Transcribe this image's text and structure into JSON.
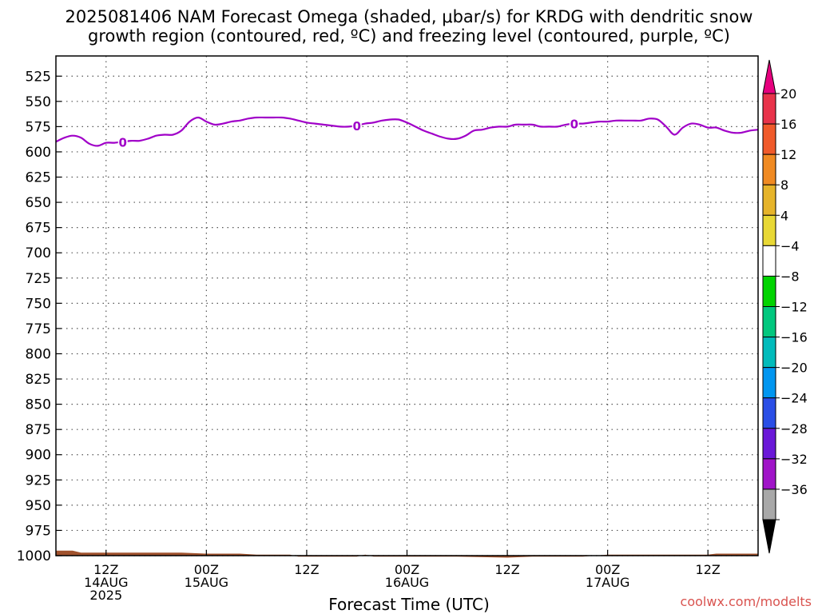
{
  "chart_data": {
    "type": "line",
    "title_line1": "2025081406 NAM Forecast Omega (shaded, μbar/s) for KRDG with dendritic snow",
    "title_line2": "growth region (contoured, red, ºC) and freezing level (contoured, purple, ºC)",
    "xlabel": "Forecast Time (UTC)",
    "y_ticks": [
      525,
      550,
      575,
      600,
      625,
      650,
      675,
      700,
      725,
      750,
      775,
      800,
      825,
      850,
      875,
      900,
      925,
      950,
      975,
      1000
    ],
    "ylim": [
      1000,
      505
    ],
    "xlim": [
      0,
      84
    ],
    "x_ticks": [
      {
        "x": 6,
        "line1": "12Z",
        "line2": "14AUG",
        "line3": "2025"
      },
      {
        "x": 18,
        "line1": "00Z",
        "line2": "15AUG",
        "line3": ""
      },
      {
        "x": 30,
        "line1": "12Z",
        "line2": "",
        "line3": ""
      },
      {
        "x": 42,
        "line1": "00Z",
        "line2": "16AUG",
        "line3": ""
      },
      {
        "x": 54,
        "line1": "12Z",
        "line2": "",
        "line3": ""
      },
      {
        "x": 66,
        "line1": "00Z",
        "line2": "17AUG",
        "line3": ""
      },
      {
        "x": 78,
        "line1": "12Z",
        "line2": "",
        "line3": ""
      }
    ],
    "grid": true,
    "freezing_level": {
      "contour_label": "0",
      "color": "#a000c8",
      "label_x": [
        8,
        36,
        62
      ],
      "x": [
        0,
        1,
        2,
        3,
        4,
        5,
        6,
        7,
        8,
        9,
        10,
        11,
        12,
        13,
        14,
        15,
        16,
        17,
        18,
        19,
        20,
        21,
        22,
        23,
        24,
        25,
        26,
        27,
        28,
        29,
        30,
        31,
        32,
        33,
        34,
        35,
        36,
        37,
        38,
        39,
        40,
        41,
        42,
        43,
        44,
        45,
        46,
        47,
        48,
        49,
        50,
        51,
        52,
        53,
        54,
        55,
        56,
        57,
        58,
        59,
        60,
        61,
        62,
        63,
        64,
        65,
        66,
        67,
        68,
        69,
        70,
        71,
        72,
        73,
        74,
        75,
        76,
        77,
        78,
        79,
        80,
        81,
        82,
        83,
        84
      ],
      "y": [
        590,
        586,
        584,
        586,
        592,
        594,
        591,
        591,
        590,
        589,
        589,
        587,
        584,
        583,
        583,
        579,
        570,
        566,
        570,
        573,
        572,
        570,
        569,
        567,
        566,
        566,
        566,
        566,
        567,
        569,
        571,
        572,
        573,
        574,
        575,
        575,
        574,
        572,
        571,
        569,
        568,
        568,
        571,
        575,
        579,
        582,
        585,
        587,
        587,
        584,
        579,
        578,
        576,
        575,
        575,
        573,
        573,
        573,
        575,
        575,
        575,
        573,
        572,
        572,
        571,
        570,
        570,
        569,
        569,
        569,
        569,
        567,
        568,
        575,
        583,
        576,
        572,
        573,
        576,
        576,
        579,
        581,
        581,
        579,
        578
      ]
    },
    "surface_pressure": {
      "color": "#a0522d",
      "x": [
        0,
        2,
        3,
        5,
        9,
        12,
        15,
        18,
        20,
        22,
        24,
        25,
        28,
        29,
        30,
        33,
        36,
        37,
        38,
        39,
        42,
        45,
        48,
        54,
        57,
        60,
        63,
        66,
        69,
        72,
        75,
        78,
        79,
        80,
        84
      ],
      "y": [
        995,
        995,
        997,
        997,
        997,
        997,
        997,
        998,
        998,
        998,
        999,
        999,
        999,
        1001,
        1001,
        1001,
        1001,
        999,
        1001,
        1001,
        1001,
        1001,
        1001,
        1002,
        1001,
        1001,
        1001,
        999,
        999,
        999,
        999,
        999,
        998,
        998,
        998
      ]
    },
    "colorbar": {
      "labels": [
        "20",
        "16",
        "12",
        "8",
        "4",
        "-4",
        "-8",
        "-12",
        "-16",
        "-20",
        "-24",
        "-28",
        "-32",
        "-36"
      ],
      "colors": [
        "#e8334a",
        "#f05a2a",
        "#f08a22",
        "#e6b42a",
        "#e8d835",
        "#ffffff",
        "#00d400",
        "#00c77e",
        "#00bbbb",
        "#0096f0",
        "#2a4ee6",
        "#6a18d8",
        "#a014c8",
        "#a8a8a8"
      ],
      "top_arrow_color": "#e6007e",
      "bottom_arrow_color": "#000000"
    }
  },
  "watermark": "coolwx.com/modelts"
}
